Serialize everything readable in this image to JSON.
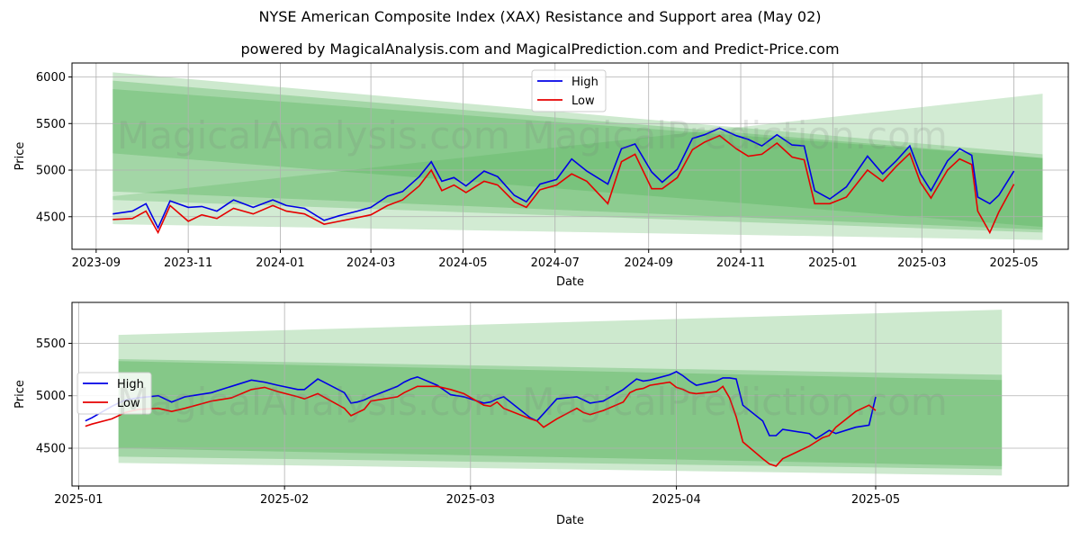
{
  "title": "NYSE American Composite Index (XAX) Resistance and Support area (May 02)",
  "subtitle": "powered by MagicalAnalysis.com and MagicalPrediction.com and Predict-Price.com",
  "watermark": "MagicalAnalysis.com    MagicalPrediction.com",
  "colors": {
    "high": "#0000e6",
    "low": "#e60000",
    "band": "#4caf50",
    "grid": "#b0b0b0"
  },
  "chart_data": [
    {
      "type": "line",
      "xlabel": "Date",
      "ylabel": "Price",
      "legend": "top-center",
      "grid": true,
      "x_ticks": [
        "2023-09",
        "2023-11",
        "2024-01",
        "2024-03",
        "2024-05",
        "2024-07",
        "2024-09",
        "2024-11",
        "2025-01",
        "2025-03",
        "2025-05"
      ],
      "y_ticks": [
        4500,
        5000,
        5500,
        6000
      ],
      "xlim": [
        "2023-08-16",
        "2025-06-06"
      ],
      "ylim": [
        4150,
        6150
      ],
      "series": [
        {
          "name": "High",
          "x": [
            "2023-09-12",
            "2023-09-25",
            "2023-10-04",
            "2023-10-12",
            "2023-10-20",
            "2023-11-01",
            "2023-11-10",
            "2023-11-20",
            "2023-12-01",
            "2023-12-14",
            "2023-12-27",
            "2024-01-05",
            "2024-01-17",
            "2024-01-30",
            "2024-02-09",
            "2024-02-21",
            "2024-03-01",
            "2024-03-12",
            "2024-03-22",
            "2024-04-02",
            "2024-04-10",
            "2024-04-17",
            "2024-04-25",
            "2024-05-03",
            "2024-05-15",
            "2024-05-24",
            "2024-06-04",
            "2024-06-12",
            "2024-06-21",
            "2024-07-02",
            "2024-07-12",
            "2024-07-22",
            "2024-08-05",
            "2024-08-14",
            "2024-08-23",
            "2024-09-03",
            "2024-09-10",
            "2024-09-20",
            "2024-09-30",
            "2024-10-08",
            "2024-10-18",
            "2024-10-29",
            "2024-11-06",
            "2024-11-15",
            "2024-11-25",
            "2024-12-05",
            "2024-12-13",
            "2024-12-20",
            "2024-12-30",
            "2025-01-10",
            "2025-01-24",
            "2025-02-03",
            "2025-02-12",
            "2025-02-21",
            "2025-02-28",
            "2025-03-07",
            "2025-03-18",
            "2025-03-26",
            "2025-04-03",
            "2025-04-07",
            "2025-04-15",
            "2025-04-21",
            "2025-05-01"
          ],
          "values": [
            4530,
            4560,
            4640,
            4380,
            4670,
            4600,
            4610,
            4560,
            4680,
            4600,
            4680,
            4620,
            4590,
            4460,
            4510,
            4560,
            4600,
            4720,
            4770,
            4930,
            5090,
            4880,
            4920,
            4830,
            4990,
            4930,
            4730,
            4660,
            4850,
            4900,
            5120,
            4990,
            4850,
            5230,
            5280,
            4980,
            4870,
            5010,
            5340,
            5380,
            5450,
            5370,
            5330,
            5260,
            5380,
            5270,
            5260,
            4780,
            4690,
            4820,
            5150,
            4960,
            5100,
            5260,
            4960,
            4780,
            5100,
            5230,
            5160,
            4710,
            4640,
            4730,
            4990
          ]
        },
        {
          "name": "Low",
          "x": [
            "2023-09-12",
            "2023-09-25",
            "2023-10-04",
            "2023-10-12",
            "2023-10-20",
            "2023-11-01",
            "2023-11-10",
            "2023-11-20",
            "2023-12-01",
            "2023-12-14",
            "2023-12-27",
            "2024-01-05",
            "2024-01-17",
            "2024-01-30",
            "2024-02-09",
            "2024-02-21",
            "2024-03-01",
            "2024-03-12",
            "2024-03-22",
            "2024-04-02",
            "2024-04-10",
            "2024-04-17",
            "2024-04-25",
            "2024-05-03",
            "2024-05-15",
            "2024-05-24",
            "2024-06-04",
            "2024-06-12",
            "2024-06-21",
            "2024-07-02",
            "2024-07-12",
            "2024-07-22",
            "2024-08-05",
            "2024-08-14",
            "2024-08-23",
            "2024-09-03",
            "2024-09-10",
            "2024-09-20",
            "2024-09-30",
            "2024-10-08",
            "2024-10-18",
            "2024-10-29",
            "2024-11-06",
            "2024-11-15",
            "2024-11-25",
            "2024-12-05",
            "2024-12-13",
            "2024-12-20",
            "2024-12-30",
            "2025-01-10",
            "2025-01-24",
            "2025-02-03",
            "2025-02-12",
            "2025-02-21",
            "2025-02-28",
            "2025-03-07",
            "2025-03-18",
            "2025-03-26",
            "2025-04-03",
            "2025-04-07",
            "2025-04-15",
            "2025-04-21",
            "2025-05-01"
          ],
          "values": [
            4470,
            4480,
            4560,
            4330,
            4620,
            4450,
            4520,
            4480,
            4590,
            4530,
            4620,
            4560,
            4530,
            4420,
            4450,
            4490,
            4520,
            4620,
            4680,
            4830,
            5000,
            4780,
            4840,
            4760,
            4880,
            4840,
            4660,
            4600,
            4790,
            4840,
            4960,
            4880,
            4640,
            5090,
            5170,
            4800,
            4800,
            4920,
            5220,
            5300,
            5370,
            5230,
            5150,
            5170,
            5290,
            5140,
            5110,
            4640,
            4640,
            4710,
            5000,
            4880,
            5040,
            5180,
            4870,
            4700,
            5000,
            5120,
            5060,
            4560,
            4330,
            4550,
            4850
          ]
        }
      ]
    },
    {
      "type": "line",
      "xlabel": "Date",
      "ylabel": "Price",
      "legend": "center-left",
      "grid": true,
      "x_ticks": [
        "2025-01",
        "2025-02",
        "2025-03",
        "2025-04",
        "2025-05"
      ],
      "y_ticks": [
        4500,
        5000,
        5500
      ],
      "xlim": [
        "2024-12-31",
        "2025-05-30"
      ],
      "ylim": [
        4140,
        5890
      ],
      "series": [
        {
          "name": "High",
          "x": [
            "2025-01-02",
            "2025-01-03",
            "2025-01-06",
            "2025-01-08",
            "2025-01-10",
            "2025-01-13",
            "2025-01-15",
            "2025-01-17",
            "2025-01-21",
            "2025-01-22",
            "2025-01-24",
            "2025-01-27",
            "2025-01-29",
            "2025-01-31",
            "2025-02-03",
            "2025-02-04",
            "2025-02-06",
            "2025-02-10",
            "2025-02-11",
            "2025-02-12",
            "2025-02-13",
            "2025-02-14",
            "2025-02-18",
            "2025-02-19",
            "2025-02-20",
            "2025-02-21",
            "2025-02-24",
            "2025-02-26",
            "2025-02-28",
            "2025-03-03",
            "2025-03-04",
            "2025-03-05",
            "2025-03-06",
            "2025-03-10",
            "2025-03-11",
            "2025-03-12",
            "2025-03-14",
            "2025-03-17",
            "2025-03-18",
            "2025-03-19",
            "2025-03-21",
            "2025-03-24",
            "2025-03-25",
            "2025-03-26",
            "2025-03-27",
            "2025-03-28",
            "2025-03-31",
            "2025-04-01",
            "2025-04-02",
            "2025-04-03",
            "2025-04-04",
            "2025-04-07",
            "2025-04-08",
            "2025-04-09",
            "2025-04-10",
            "2025-04-11",
            "2025-04-14",
            "2025-04-15",
            "2025-04-16",
            "2025-04-17",
            "2025-04-21",
            "2025-04-22",
            "2025-04-23",
            "2025-04-24",
            "2025-04-25",
            "2025-04-28",
            "2025-04-30",
            "2025-05-01"
          ],
          "values": [
            4760,
            4790,
            4900,
            4960,
            4980,
            5000,
            4940,
            4990,
            5030,
            5050,
            5090,
            5150,
            5130,
            5100,
            5060,
            5060,
            5160,
            5030,
            4930,
            4940,
            4960,
            4990,
            5090,
            5130,
            5160,
            5180,
            5100,
            5010,
            4990,
            4930,
            4940,
            4970,
            4990,
            4790,
            4760,
            4830,
            4970,
            4990,
            4960,
            4930,
            4950,
            5060,
            5110,
            5160,
            5140,
            5150,
            5200,
            5230,
            5190,
            5140,
            5100,
            5140,
            5170,
            5170,
            5160,
            4910,
            4760,
            4620,
            4620,
            4680,
            4640,
            4590,
            4630,
            4670,
            4640,
            4700,
            4720,
            4990
          ]
        },
        {
          "name": "Low",
          "x": [
            "2025-01-02",
            "2025-01-03",
            "2025-01-06",
            "2025-01-08",
            "2025-01-10",
            "2025-01-13",
            "2025-01-15",
            "2025-01-17",
            "2025-01-21",
            "2025-01-22",
            "2025-01-24",
            "2025-01-27",
            "2025-01-29",
            "2025-01-31",
            "2025-02-03",
            "2025-02-04",
            "2025-02-06",
            "2025-02-10",
            "2025-02-11",
            "2025-02-12",
            "2025-02-13",
            "2025-02-14",
            "2025-02-18",
            "2025-02-19",
            "2025-02-20",
            "2025-02-21",
            "2025-02-24",
            "2025-02-26",
            "2025-02-28",
            "2025-03-03",
            "2025-03-04",
            "2025-03-05",
            "2025-03-06",
            "2025-03-10",
            "2025-03-11",
            "2025-03-12",
            "2025-03-14",
            "2025-03-17",
            "2025-03-18",
            "2025-03-19",
            "2025-03-21",
            "2025-03-24",
            "2025-03-25",
            "2025-03-26",
            "2025-03-27",
            "2025-03-28",
            "2025-03-31",
            "2025-04-01",
            "2025-04-02",
            "2025-04-03",
            "2025-04-04",
            "2025-04-07",
            "2025-04-08",
            "2025-04-09",
            "2025-04-10",
            "2025-04-11",
            "2025-04-14",
            "2025-04-15",
            "2025-04-16",
            "2025-04-17",
            "2025-04-21",
            "2025-04-22",
            "2025-04-23",
            "2025-04-24",
            "2025-04-25",
            "2025-04-28",
            "2025-04-30",
            "2025-05-01"
          ],
          "values": [
            4710,
            4730,
            4780,
            4840,
            4870,
            4880,
            4850,
            4880,
            4950,
            4960,
            4980,
            5060,
            5080,
            5040,
            4990,
            4970,
            5020,
            4880,
            4810,
            4840,
            4870,
            4950,
            4990,
            5030,
            5060,
            5090,
            5090,
            5060,
            5020,
            4910,
            4900,
            4940,
            4880,
            4780,
            4760,
            4700,
            4780,
            4880,
            4840,
            4820,
            4860,
            4940,
            5030,
            5060,
            5070,
            5100,
            5130,
            5080,
            5060,
            5030,
            5020,
            5040,
            5090,
            4980,
            4800,
            4560,
            4400,
            4350,
            4330,
            4400,
            4520,
            4560,
            4600,
            4620,
            4700,
            4850,
            4910,
            4860
          ]
        }
      ]
    }
  ]
}
